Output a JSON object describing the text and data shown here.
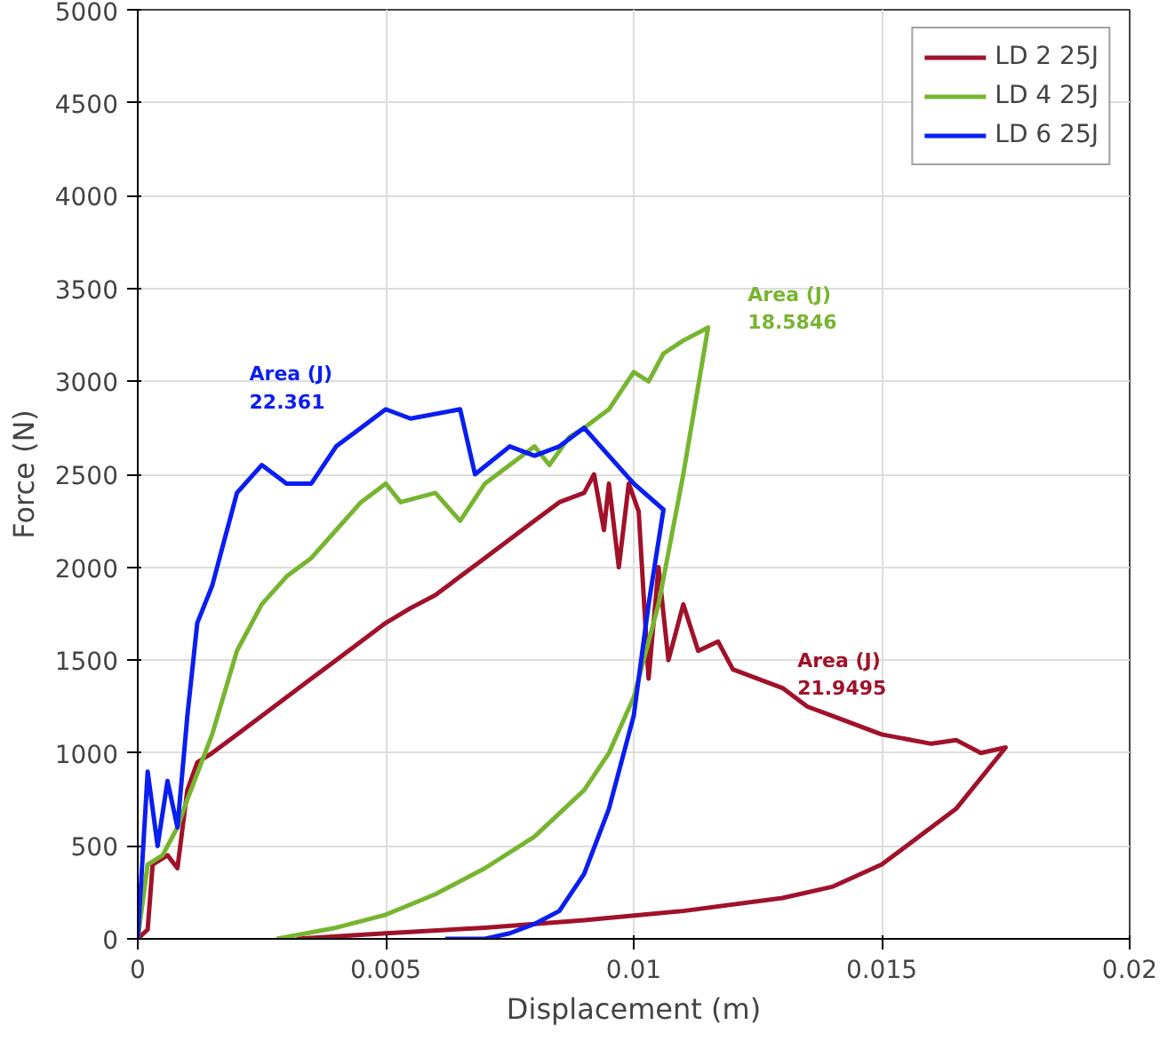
{
  "chart_data": {
    "type": "line",
    "xlabel": "Displacement (m)",
    "ylabel": "Force (N)",
    "xlim": [
      0,
      0.02
    ],
    "ylim": [
      0,
      5000
    ],
    "xticks": [
      0,
      0.005,
      0.01,
      0.015,
      0.02
    ],
    "yticks": [
      0,
      500,
      1000,
      1500,
      2000,
      2500,
      3000,
      3500,
      4000,
      4500,
      5000
    ],
    "grid": true,
    "legend": "top right",
    "line_style": "solid",
    "marker": "none",
    "series": [
      {
        "name": "LD 2 25J",
        "color": "#a0122a",
        "x": [
          0,
          0.0002,
          0.0003,
          0.0006,
          0.0008,
          0.001,
          0.0012,
          0.0015,
          0.002,
          0.0025,
          0.003,
          0.0035,
          0.004,
          0.0045,
          0.005,
          0.0055,
          0.006,
          0.0065,
          0.007,
          0.0075,
          0.008,
          0.0085,
          0.009,
          0.0092,
          0.0094,
          0.0095,
          0.0097,
          0.0099,
          0.0101,
          0.0103,
          0.0105,
          0.0107,
          0.011,
          0.0113,
          0.0117,
          0.012,
          0.0125,
          0.013,
          0.0135,
          0.014,
          0.0145,
          0.015,
          0.016,
          0.0165,
          0.017,
          0.0175,
          0.0165,
          0.015,
          0.014,
          0.013,
          0.011,
          0.009,
          0.007,
          0.005,
          0.0032
        ],
        "values": [
          0,
          50,
          400,
          450,
          380,
          800,
          950,
          1000,
          1100,
          1200,
          1300,
          1400,
          1500,
          1600,
          1700,
          1780,
          1850,
          1950,
          2050,
          2150,
          2250,
          2350,
          2400,
          2500,
          2200,
          2450,
          2000,
          2450,
          2300,
          1400,
          2000,
          1500,
          1800,
          1550,
          1600,
          1450,
          1400,
          1350,
          1250,
          1200,
          1150,
          1100,
          1050,
          1070,
          1000,
          1030,
          700,
          400,
          280,
          220,
          150,
          100,
          60,
          30,
          0
        ]
      },
      {
        "name": "LD 4 25J",
        "color": "#77b530",
        "x": [
          0,
          0.0002,
          0.0005,
          0.0008,
          0.001,
          0.0015,
          0.002,
          0.0025,
          0.003,
          0.0035,
          0.004,
          0.0045,
          0.005,
          0.0053,
          0.006,
          0.0065,
          0.007,
          0.0075,
          0.008,
          0.0083,
          0.0087,
          0.009,
          0.0095,
          0.01,
          0.0103,
          0.0106,
          0.011,
          0.0115,
          0.011,
          0.0105,
          0.01,
          0.0095,
          0.009,
          0.008,
          0.007,
          0.006,
          0.005,
          0.004,
          0.0028
        ],
        "values": [
          0,
          400,
          450,
          600,
          750,
          1100,
          1550,
          1800,
          1950,
          2050,
          2200,
          2350,
          2450,
          2350,
          2400,
          2250,
          2450,
          2550,
          2650,
          2550,
          2700,
          2750,
          2850,
          3050,
          3000,
          3150,
          3220,
          3290,
          2500,
          1800,
          1300,
          1000,
          800,
          550,
          380,
          240,
          130,
          60,
          0
        ]
      },
      {
        "name": "LD 6 25J",
        "color": "#0a1ef0",
        "x": [
          0,
          0.0002,
          0.0004,
          0.0006,
          0.0008,
          0.001,
          0.0012,
          0.0015,
          0.0018,
          0.002,
          0.0025,
          0.003,
          0.0035,
          0.004,
          0.0045,
          0.005,
          0.0055,
          0.0065,
          0.0068,
          0.0075,
          0.008,
          0.0085,
          0.009,
          0.0095,
          0.01,
          0.0106,
          0.0103,
          0.01,
          0.0095,
          0.009,
          0.0085,
          0.008,
          0.0075,
          0.007,
          0.0062
        ],
        "values": [
          0,
          900,
          500,
          850,
          600,
          1200,
          1700,
          1900,
          2200,
          2400,
          2550,
          2450,
          2450,
          2650,
          2750,
          2850,
          2800,
          2850,
          2500,
          2650,
          2600,
          2650,
          2750,
          2600,
          2450,
          2310,
          1800,
          1200,
          700,
          350,
          150,
          80,
          30,
          0,
          0
        ]
      }
    ],
    "annotations": [
      "Area (J)\n22.361",
      "Area (J)\n18.5846",
      "Area (J)\n21.9495"
    ]
  }
}
